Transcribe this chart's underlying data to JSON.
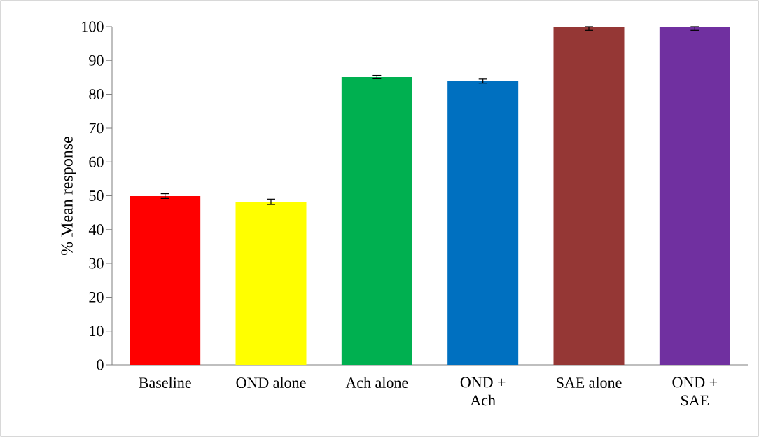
{
  "chart_data": {
    "type": "bar",
    "ylabel": "% Mean response",
    "categories": [
      "Baseline",
      "OND alone",
      "Ach alone",
      "OND + Ach",
      "SAE alone",
      "OND + SAE"
    ],
    "values": [
      49.9,
      48.2,
      85.1,
      83.9,
      99.8,
      100
    ],
    "errors": [
      0.7,
      0.8,
      0.5,
      0.6,
      [
        98.9,
        100
      ],
      [
        98.9,
        100
      ]
    ],
    "colors": [
      "#ff0000",
      "#ffff00",
      "#00b050",
      "#0070c0",
      "#953735",
      "#7030a0"
    ],
    "ylim": [
      0,
      100
    ],
    "yticks": [
      0,
      10,
      20,
      30,
      40,
      50,
      60,
      70,
      80,
      90,
      100
    ],
    "grid": false
  }
}
